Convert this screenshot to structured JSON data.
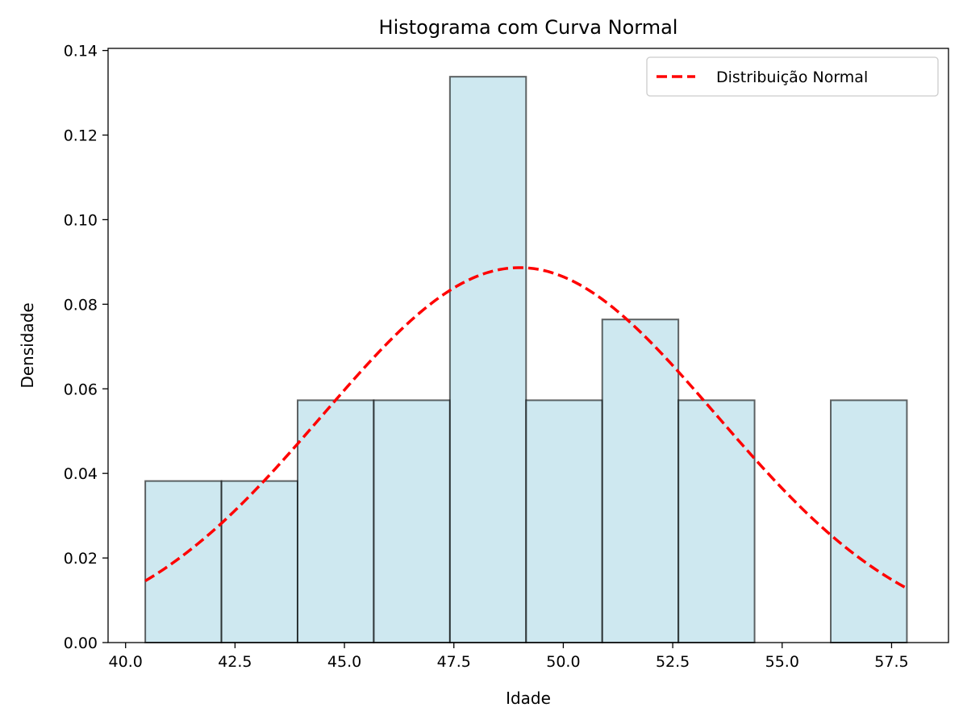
{
  "chart_data": {
    "type": "bar",
    "title": "Histograma com Curva Normal",
    "xlabel": "Idade",
    "ylabel": "Densidade",
    "xlim": [
      39.6,
      58.8
    ],
    "ylim": [
      0,
      0.1405
    ],
    "xticks": [
      40.0,
      42.5,
      45.0,
      47.5,
      50.0,
      52.5,
      55.0,
      57.5
    ],
    "xtick_labels": [
      "40.0",
      "42.5",
      "45.0",
      "47.5",
      "50.0",
      "52.5",
      "55.0",
      "57.5"
    ],
    "yticks": [
      0.0,
      0.02,
      0.04,
      0.06,
      0.08,
      0.1,
      0.12,
      0.14
    ],
    "ytick_labels": [
      "0.00",
      "0.02",
      "0.04",
      "0.06",
      "0.08",
      "0.10",
      "0.12",
      "0.14"
    ],
    "histogram": {
      "bin_edges": [
        40.45,
        42.19,
        43.93,
        45.67,
        47.41,
        49.15,
        50.89,
        52.63,
        54.37,
        56.11,
        57.85
      ],
      "densities": [
        0.0382,
        0.0382,
        0.0573,
        0.0573,
        0.1338,
        0.0573,
        0.0764,
        0.0573,
        0.0,
        0.0573
      ],
      "fill_color": "#add8e6",
      "edge_color": "#000000"
    },
    "series": [
      {
        "name": "Distribuição Normal",
        "type": "line",
        "style": "dashed",
        "color": "#ff0000",
        "mean": 49.0,
        "std": 4.5,
        "x_range": [
          40.45,
          57.85
        ]
      }
    ],
    "legend": {
      "position": "top-right",
      "entries": [
        "Distribuição Normal"
      ]
    },
    "grid": false
  }
}
